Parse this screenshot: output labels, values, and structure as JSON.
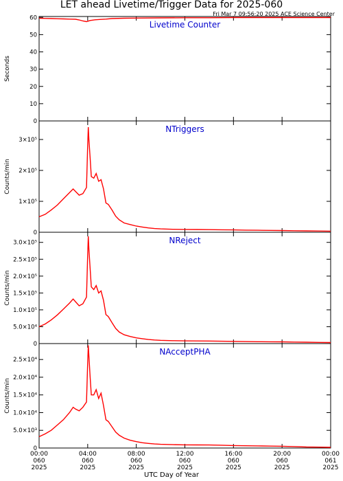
{
  "page": {
    "title": "LET ahead Livetime/Trigger Data for 2025-060",
    "timestamp": "Fri Mar  7 09:56:20 2025 ACE Science Center",
    "x_caption": "UTC Day of Year"
  },
  "colors": {
    "data_line": "#ff0000",
    "panel_label": "#0000cc",
    "axes": "#000000"
  },
  "chart_data": [
    {
      "type": "line",
      "label": "Livetime Counter",
      "ylabel": "Seconds",
      "ylim": [
        0,
        60.5
      ],
      "yticks": [
        {
          "v": 0,
          "t": "0"
        },
        {
          "v": 10,
          "t": "10"
        },
        {
          "v": 20,
          "t": "20"
        },
        {
          "v": 30,
          "t": "30"
        },
        {
          "v": 40,
          "t": "40"
        },
        {
          "v": 50,
          "t": "50"
        },
        {
          "v": 60,
          "t": "60"
        }
      ],
      "x": [
        0,
        0.5,
        1.0,
        1.5,
        2.0,
        2.5,
        3.0,
        3.3,
        3.6,
        3.9,
        4.2,
        4.6,
        5.0,
        5.5,
        6.0,
        7.0,
        8.0,
        10.0,
        12.0,
        14.0,
        16.0,
        18.0,
        20.0,
        22.0,
        24.0
      ],
      "y": [
        59.5,
        59.4,
        59.3,
        59.2,
        59.1,
        59.0,
        58.9,
        58.5,
        57.9,
        57.5,
        58.2,
        58.6,
        58.8,
        59.0,
        59.3,
        59.5,
        59.6,
        59.7,
        59.8,
        59.8,
        59.9,
        59.9,
        59.9,
        59.9,
        59.9
      ]
    },
    {
      "type": "line",
      "label": "NTriggers",
      "ylabel": "Counts/min",
      "ylim": [
        0,
        360000
      ],
      "yticks": [
        {
          "v": 0,
          "t": "0"
        },
        {
          "v": 100000,
          "t": "1×10⁵"
        },
        {
          "v": 200000,
          "t": "2×10⁵"
        },
        {
          "v": 300000,
          "t": "3×10⁵"
        }
      ],
      "x": [
        0,
        0.5,
        1.0,
        1.5,
        2.0,
        2.5,
        2.8,
        3.0,
        3.3,
        3.6,
        3.9,
        4.0,
        4.05,
        4.1,
        4.2,
        4.3,
        4.5,
        4.7,
        4.9,
        5.1,
        5.3,
        5.5,
        5.7,
        6.0,
        6.3,
        6.6,
        7.0,
        7.5,
        8.0,
        8.5,
        9.0,
        9.5,
        10.0,
        11.0,
        12.0,
        13.0,
        14.0,
        15.0,
        16.0,
        17.0,
        18.0,
        19.0,
        20.0,
        21.0,
        22.0,
        23.0,
        24.0
      ],
      "y": [
        50000,
        58000,
        72000,
        88000,
        108000,
        128000,
        140000,
        132000,
        120000,
        125000,
        145000,
        280000,
        340000,
        300000,
        240000,
        180000,
        175000,
        190000,
        165000,
        170000,
        140000,
        95000,
        90000,
        72000,
        52000,
        40000,
        30000,
        25000,
        20000,
        17000,
        14000,
        12000,
        11000,
        9500,
        9000,
        8800,
        8500,
        8000,
        7500,
        7000,
        6500,
        6000,
        5500,
        5000,
        4500,
        4000,
        3500
      ]
    },
    {
      "type": "line",
      "label": "NReject",
      "ylabel": "Counts/min",
      "ylim": [
        0,
        330000
      ],
      "yticks": [
        {
          "v": 0,
          "t": "0"
        },
        {
          "v": 50000,
          "t": "5.0×10⁴"
        },
        {
          "v": 100000,
          "t": "1.0×10⁵"
        },
        {
          "v": 150000,
          "t": "1.5×10⁵"
        },
        {
          "v": 200000,
          "t": "2.0×10⁵"
        },
        {
          "v": 250000,
          "t": "2.5×10⁵"
        },
        {
          "v": 300000,
          "t": "3.0×10⁵"
        }
      ],
      "x": [
        0,
        0.5,
        1.0,
        1.5,
        2.0,
        2.5,
        2.8,
        3.0,
        3.3,
        3.6,
        3.9,
        4.0,
        4.05,
        4.1,
        4.2,
        4.3,
        4.5,
        4.7,
        4.9,
        5.1,
        5.3,
        5.5,
        5.7,
        6.0,
        6.3,
        6.6,
        7.0,
        7.5,
        8.0,
        8.5,
        9.0,
        9.5,
        10.0,
        11.0,
        12.0,
        13.0,
        14.0,
        15.0,
        16.0,
        17.0,
        18.0,
        19.0,
        20.0,
        21.0,
        22.0,
        23.0,
        24.0
      ],
      "y": [
        50000,
        58000,
        70000,
        85000,
        102000,
        120000,
        132000,
        124000,
        112000,
        118000,
        138000,
        262000,
        318000,
        280000,
        222000,
        168000,
        160000,
        172000,
        150000,
        156000,
        128000,
        86000,
        80000,
        62000,
        45000,
        34000,
        26000,
        21000,
        17000,
        14500,
        12000,
        10500,
        9500,
        8500,
        8000,
        7800,
        7500,
        7000,
        6500,
        6000,
        5500,
        5200,
        5000,
        4500,
        4000,
        3500,
        3000
      ]
    },
    {
      "type": "line",
      "label": "NAcceptPHA",
      "ylabel": "Counts/min",
      "ylim": [
        0,
        29500
      ],
      "yticks": [
        {
          "v": 0,
          "t": "0"
        },
        {
          "v": 5000,
          "t": "5.0×10³"
        },
        {
          "v": 10000,
          "t": "1.0×10⁴"
        },
        {
          "v": 15000,
          "t": "1.5×10⁴"
        },
        {
          "v": 20000,
          "t": "2.0×10⁴"
        },
        {
          "v": 25000,
          "t": "2.5×10⁴"
        }
      ],
      "x": [
        0,
        0.5,
        1.0,
        1.5,
        2.0,
        2.5,
        2.8,
        3.0,
        3.3,
        3.6,
        3.9,
        4.0,
        4.05,
        4.1,
        4.2,
        4.3,
        4.5,
        4.7,
        4.9,
        5.1,
        5.3,
        5.5,
        5.7,
        6.0,
        6.3,
        6.6,
        7.0,
        7.5,
        8.0,
        8.5,
        9.0,
        9.5,
        10.0,
        11.0,
        12.0,
        13.0,
        14.0,
        15.0,
        16.0,
        17.0,
        18.0,
        19.0,
        20.0,
        21.0,
        22.0,
        23.0,
        24.0
      ],
      "y": [
        3200,
        4000,
        5000,
        6500,
        8000,
        10000,
        11500,
        11000,
        10500,
        11500,
        13000,
        24000,
        29000,
        26000,
        20000,
        15000,
        15000,
        16500,
        14000,
        15500,
        12000,
        8000,
        7500,
        6000,
        4500,
        3600,
        2800,
        2200,
        1800,
        1500,
        1300,
        1150,
        1050,
        950,
        900,
        880,
        850,
        800,
        700,
        650,
        600,
        550,
        500,
        400,
        300,
        250,
        200
      ]
    }
  ],
  "x_axis": {
    "xlim": [
      0,
      24
    ],
    "ticks": [
      {
        "v": 0,
        "time": "00:00",
        "doy": "060",
        "year": "2025"
      },
      {
        "v": 4,
        "time": "04:00",
        "doy": "060",
        "year": "2025"
      },
      {
        "v": 8,
        "time": "08:00",
        "doy": "060",
        "year": "2025"
      },
      {
        "v": 12,
        "time": "12:00",
        "doy": "060",
        "year": "2025"
      },
      {
        "v": 16,
        "time": "16:00",
        "doy": "060",
        "year": "2025"
      },
      {
        "v": 20,
        "time": "20:00",
        "doy": "060",
        "year": "2025"
      },
      {
        "v": 24,
        "time": "00:00",
        "doy": "061",
        "year": "2025"
      }
    ]
  }
}
